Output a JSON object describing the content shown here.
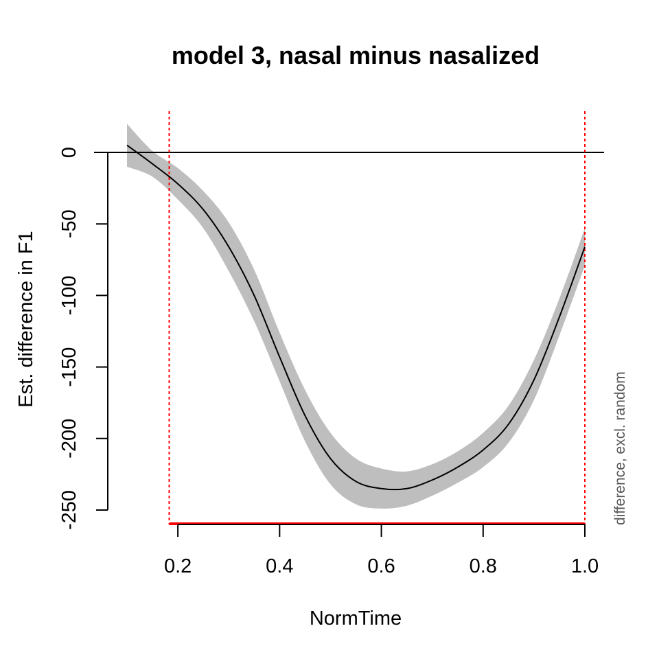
{
  "chart_data": {
    "type": "line",
    "title": "model 3, nasal minus nasalized",
    "xlabel": "NormTime",
    "ylabel": "Est. difference in F1",
    "side_note": "difference, excl. random",
    "xlim": [
      0.1,
      1.0
    ],
    "ylim": [
      -250,
      0
    ],
    "x_ticks": [
      0.2,
      0.4,
      0.6,
      0.8,
      1.0
    ],
    "x_tick_labels": [
      "0.2",
      "0.4",
      "0.6",
      "0.8",
      "1.0"
    ],
    "y_ticks": [
      0,
      -50,
      -100,
      -150,
      -200,
      -250
    ],
    "y_tick_labels": [
      "0",
      "-50",
      "-100",
      "-150",
      "-200",
      "-250"
    ],
    "reference_line_y": 0,
    "significance_region": [
      0.183,
      1.0
    ],
    "significance_color": "#ff0000",
    "band_color": "#bebebe",
    "line_color": "#000000",
    "series": [
      {
        "x": [
          0.1,
          0.15,
          0.2,
          0.25,
          0.3,
          0.35,
          0.4,
          0.45,
          0.5,
          0.55,
          0.6,
          0.65,
          0.7,
          0.75,
          0.8,
          0.85,
          0.9,
          0.95,
          1.0
        ],
        "y": [
          5,
          -8,
          -22,
          -40,
          -66,
          -100,
          -143,
          -184,
          -214,
          -230,
          -235,
          -235,
          -229,
          -220,
          -208,
          -190,
          -159,
          -115,
          -66
        ],
        "lower": [
          -10,
          -17,
          -33,
          -53,
          -83,
          -118,
          -160,
          -202,
          -232,
          -246,
          -249,
          -247,
          -240,
          -231,
          -220,
          -203,
          -173,
          -128,
          -79
        ],
        "upper": [
          20,
          1,
          -11,
          -27,
          -49,
          -82,
          -126,
          -166,
          -196,
          -214,
          -221,
          -223,
          -218,
          -209,
          -196,
          -177,
          -145,
          -102,
          -53
        ]
      }
    ]
  }
}
